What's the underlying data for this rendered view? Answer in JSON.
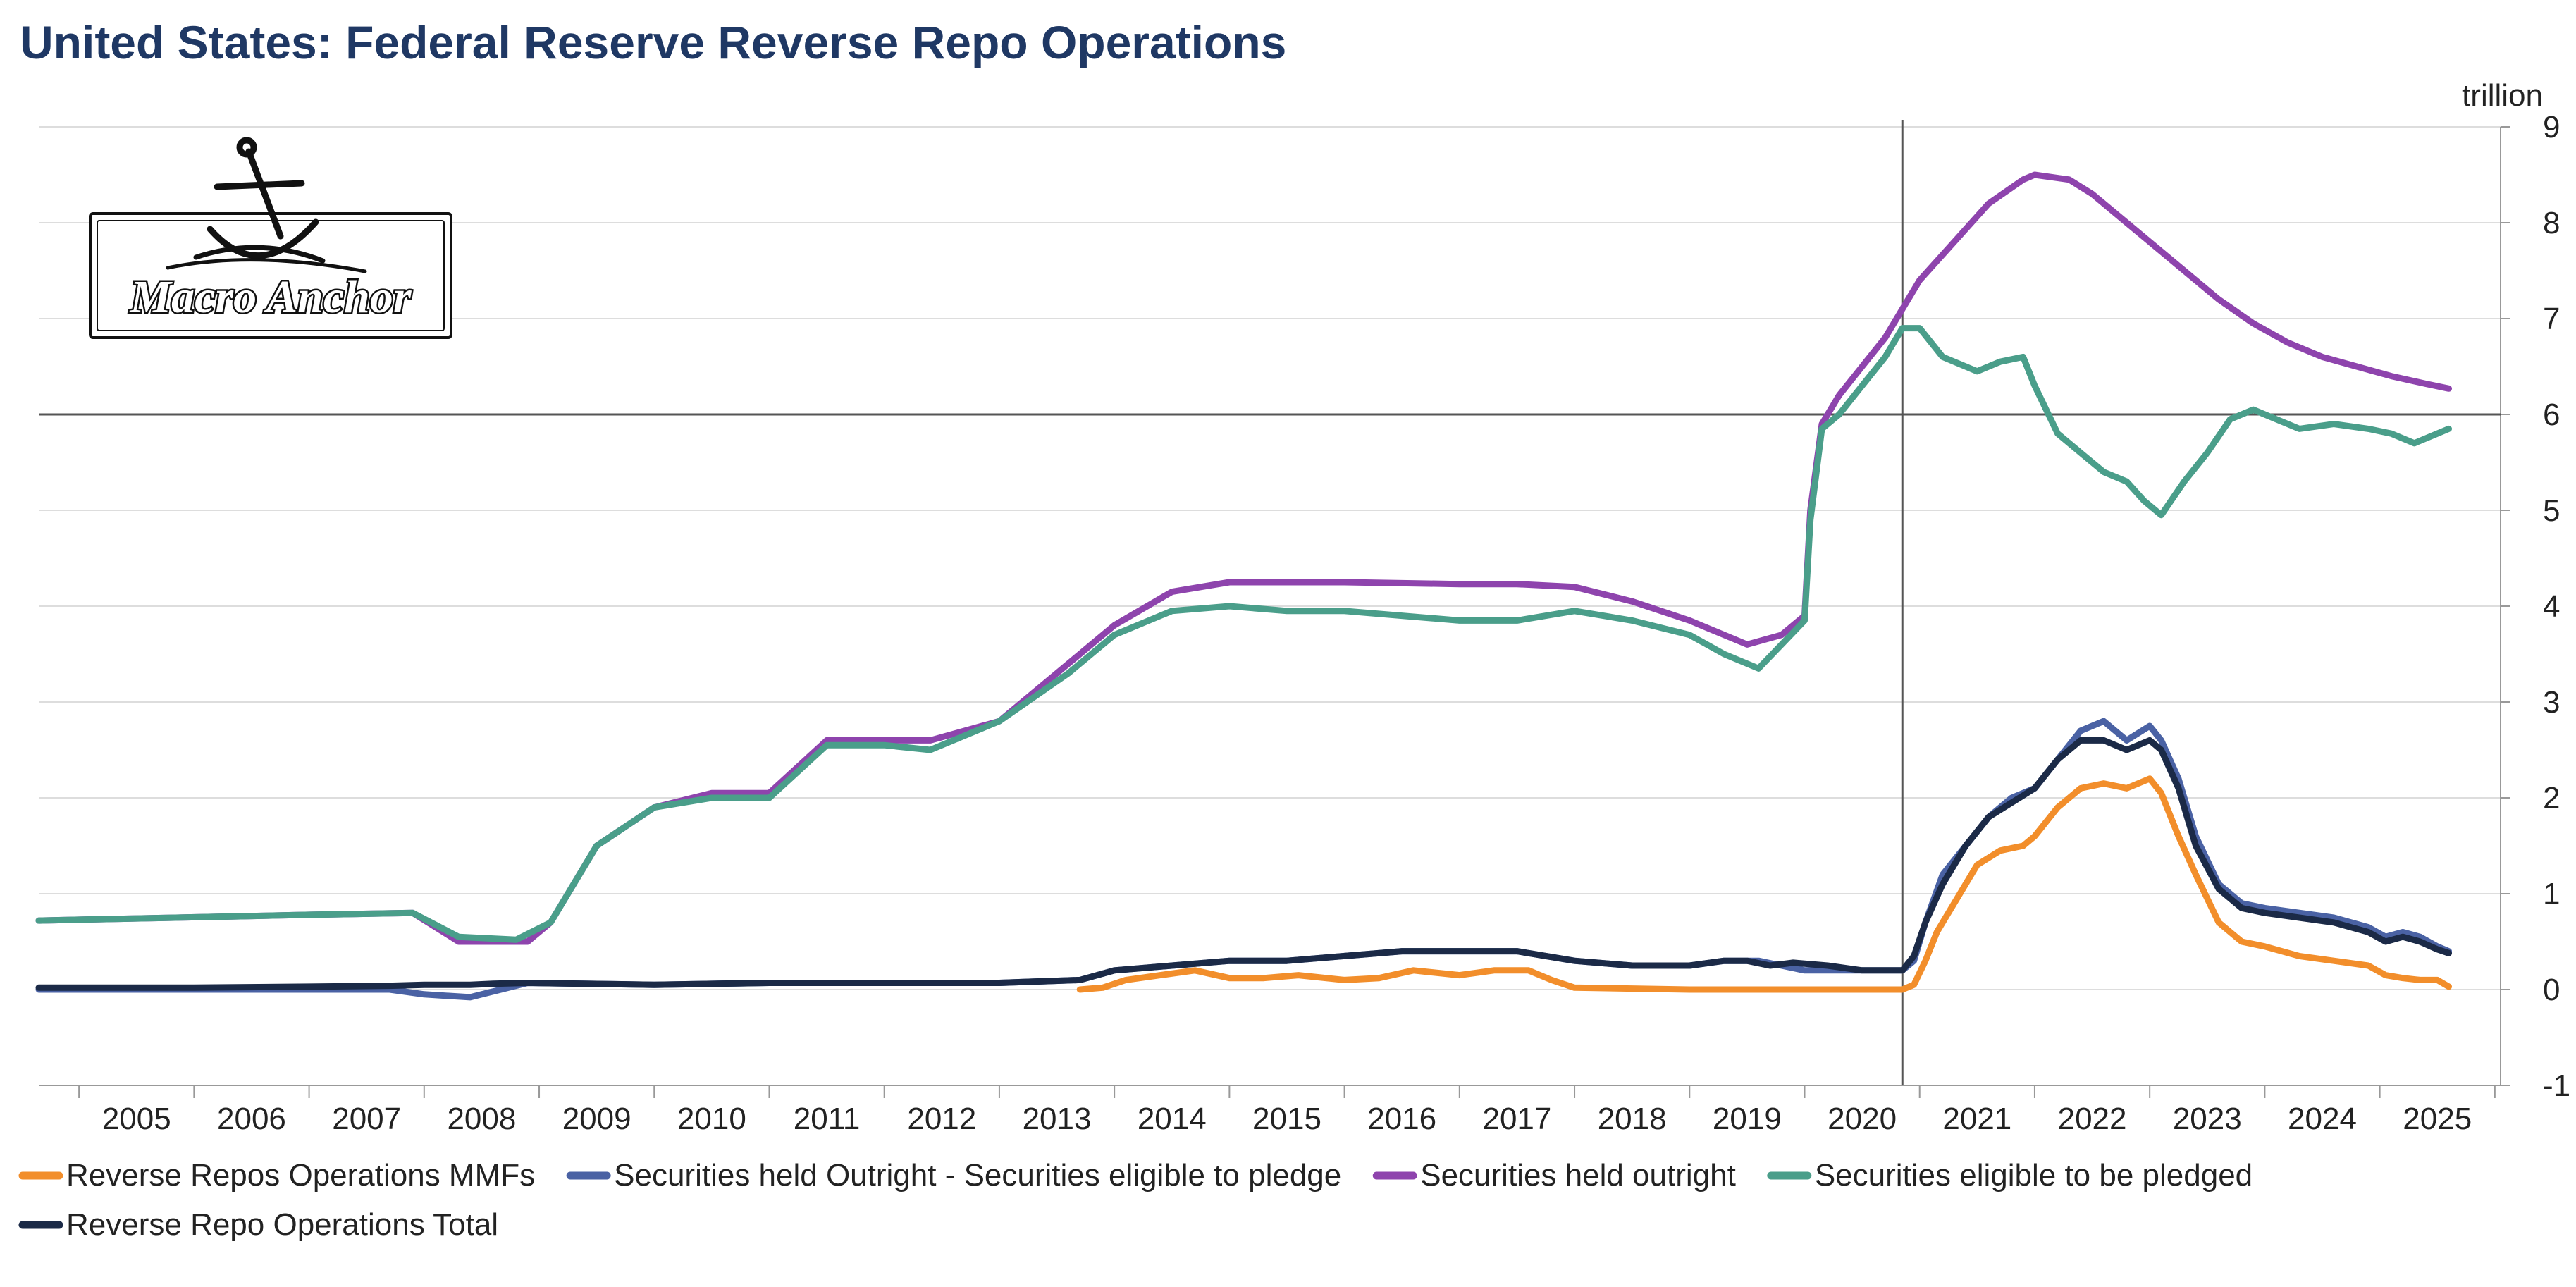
{
  "title": "United States: Federal Reserve Reverse Repo Operations",
  "logo_text": "Macro Anchor",
  "chart_data": {
    "type": "line",
    "title": "United States: Federal Reserve Reverse Repo Operations",
    "y_unit": "trillion",
    "ylim": [
      -1,
      9
    ],
    "y_ticks": [
      -1,
      0,
      1,
      2,
      3,
      4,
      5,
      6,
      7,
      8,
      9
    ],
    "xlim": [
      2004.65,
      2026.05
    ],
    "x_ticks": [
      "2005",
      "2006",
      "2007",
      "2008",
      "2009",
      "2010",
      "2011",
      "2012",
      "2013",
      "2014",
      "2015",
      "2016",
      "2017",
      "2018",
      "2019",
      "2020",
      "2021",
      "2022",
      "2023",
      "2024",
      "2025"
    ],
    "grid": true,
    "reference_lines": {
      "horizontal_y": 6,
      "vertical_x": 2020.85
    },
    "legend_position": "bottom",
    "series": [
      {
        "name": "Reverse Repos Operations MMFs",
        "color": "#f28e2b",
        "x": [
          2013.7,
          2013.9,
          2014.1,
          2014.4,
          2014.7,
          2015.0,
          2015.3,
          2015.6,
          2016.0,
          2016.3,
          2016.6,
          2017.0,
          2017.3,
          2017.6,
          2017.8,
          2018.0,
          2018.5,
          2019.0,
          2019.5,
          2020.0,
          2020.85,
          2020.95,
          2021.05,
          2021.15,
          2021.3,
          2021.5,
          2021.7,
          2021.9,
          2022.0,
          2022.2,
          2022.4,
          2022.6,
          2022.8,
          2023.0,
          2023.1,
          2023.25,
          2023.4,
          2023.6,
          2023.8,
          2024.0,
          2024.3,
          2024.6,
          2024.9,
          2025.05,
          2025.2,
          2025.35,
          2025.5,
          2025.6
        ],
        "y": [
          0.0,
          0.02,
          0.1,
          0.15,
          0.2,
          0.12,
          0.12,
          0.15,
          0.1,
          0.12,
          0.2,
          0.15,
          0.2,
          0.2,
          0.1,
          0.02,
          0.01,
          0.0,
          0.0,
          0.0,
          0.0,
          0.05,
          0.3,
          0.6,
          0.9,
          1.3,
          1.45,
          1.5,
          1.6,
          1.9,
          2.1,
          2.15,
          2.1,
          2.2,
          2.05,
          1.6,
          1.2,
          0.7,
          0.5,
          0.45,
          0.35,
          0.3,
          0.25,
          0.15,
          0.12,
          0.1,
          0.1,
          0.03
        ]
      },
      {
        "name": "Securities held Outright - Securities eligible to pledge",
        "color": "#4a62a4",
        "x": [
          2004.65,
          2006.0,
          2007.0,
          2007.7,
          2008.0,
          2008.4,
          2008.9,
          2010.0,
          2011.0,
          2012.0,
          2013.0,
          2013.7,
          2014.0,
          2014.5,
          2015.0,
          2015.5,
          2016.0,
          2016.5,
          2017.0,
          2017.5,
          2018.0,
          2018.5,
          2019.0,
          2019.3,
          2019.6,
          2019.8,
          2020.0,
          2020.3,
          2020.6,
          2020.85,
          2020.95,
          2021.05,
          2021.2,
          2021.4,
          2021.6,
          2021.8,
          2022.0,
          2022.2,
          2022.4,
          2022.6,
          2022.8,
          2023.0,
          2023.1,
          2023.25,
          2023.4,
          2023.6,
          2023.8,
          2024.0,
          2024.3,
          2024.6,
          2024.9,
          2025.05,
          2025.2,
          2025.35,
          2025.5,
          2025.6
        ],
        "y": [
          0.0,
          0.0,
          0.0,
          0.0,
          -0.05,
          -0.08,
          0.07,
          0.05,
          0.07,
          0.07,
          0.07,
          0.1,
          0.2,
          0.25,
          0.3,
          0.3,
          0.35,
          0.4,
          0.4,
          0.4,
          0.3,
          0.25,
          0.25,
          0.3,
          0.3,
          0.25,
          0.2,
          0.2,
          0.2,
          0.2,
          0.3,
          0.7,
          1.2,
          1.5,
          1.8,
          2.0,
          2.1,
          2.4,
          2.7,
          2.8,
          2.6,
          2.75,
          2.6,
          2.2,
          1.6,
          1.1,
          0.9,
          0.85,
          0.8,
          0.75,
          0.65,
          0.55,
          0.6,
          0.55,
          0.45,
          0.4
        ]
      },
      {
        "name": "Securities held outright",
        "color": "#8e44ad",
        "x": [
          2004.65,
          2007.0,
          2007.9,
          2008.3,
          2008.9,
          2009.1,
          2009.5,
          2010.0,
          2010.5,
          2011.0,
          2011.5,
          2012.0,
          2012.4,
          2013.0,
          2013.6,
          2014.0,
          2014.5,
          2015.0,
          2016.0,
          2017.0,
          2017.5,
          2018.0,
          2018.5,
          2019.0,
          2019.5,
          2019.8,
          2020.0,
          2020.05,
          2020.15,
          2020.3,
          2020.5,
          2020.7,
          2020.85,
          2021.0,
          2021.3,
          2021.6,
          2021.9,
          2022.0,
          2022.3,
          2022.5,
          2022.8,
          2023.0,
          2023.3,
          2023.6,
          2023.9,
          2024.2,
          2024.5,
          2024.8,
          2025.1,
          2025.4,
          2025.6
        ],
        "y": [
          0.72,
          0.78,
          0.8,
          0.5,
          0.5,
          0.7,
          1.5,
          1.9,
          2.05,
          2.05,
          2.6,
          2.6,
          2.6,
          2.8,
          3.4,
          3.8,
          4.15,
          4.25,
          4.25,
          4.23,
          4.23,
          4.2,
          4.05,
          3.85,
          3.6,
          3.7,
          3.9,
          5.0,
          5.9,
          6.2,
          6.5,
          6.8,
          7.1,
          7.4,
          7.8,
          8.2,
          8.45,
          8.5,
          8.45,
          8.3,
          8.0,
          7.8,
          7.5,
          7.2,
          6.95,
          6.75,
          6.6,
          6.5,
          6.4,
          6.32,
          6.27
        ]
      },
      {
        "name": "Securities eligible to be pledged",
        "color": "#4a9e8a",
        "x": [
          2004.65,
          2007.0,
          2007.9,
          2008.3,
          2008.8,
          2009.1,
          2009.5,
          2010.0,
          2010.5,
          2011.0,
          2011.5,
          2012.0,
          2012.4,
          2013.0,
          2013.6,
          2014.0,
          2014.5,
          2015.0,
          2015.5,
          2016.0,
          2016.5,
          2017.0,
          2017.5,
          2018.0,
          2018.5,
          2019.0,
          2019.3,
          2019.6,
          2020.0,
          2020.05,
          2020.15,
          2020.3,
          2020.5,
          2020.7,
          2020.85,
          2021.0,
          2021.2,
          2021.5,
          2021.7,
          2021.9,
          2022.0,
          2022.2,
          2022.4,
          2022.6,
          2022.8,
          2022.95,
          2023.1,
          2023.3,
          2023.5,
          2023.7,
          2023.9,
          2024.1,
          2024.3,
          2024.6,
          2024.9,
          2025.1,
          2025.3,
          2025.5,
          2025.6
        ],
        "y": [
          0.72,
          0.78,
          0.8,
          0.55,
          0.52,
          0.7,
          1.5,
          1.9,
          2.0,
          2.0,
          2.55,
          2.55,
          2.5,
          2.8,
          3.3,
          3.7,
          3.95,
          4.0,
          3.95,
          3.95,
          3.9,
          3.85,
          3.85,
          3.95,
          3.85,
          3.7,
          3.5,
          3.35,
          3.85,
          4.9,
          5.85,
          6.0,
          6.3,
          6.6,
          6.9,
          6.9,
          6.6,
          6.45,
          6.55,
          6.6,
          6.3,
          5.8,
          5.6,
          5.4,
          5.3,
          5.1,
          4.95,
          5.3,
          5.6,
          5.95,
          6.05,
          5.95,
          5.85,
          5.9,
          5.85,
          5.8,
          5.7,
          5.8,
          5.85
        ]
      },
      {
        "name": "Reverse Repo Operations Total",
        "color": "#1b2a47",
        "x": [
          2004.65,
          2006.0,
          2007.0,
          2007.7,
          2008.0,
          2008.4,
          2008.6,
          2008.9,
          2010.0,
          2011.0,
          2012.0,
          2013.0,
          2013.7,
          2014.0,
          2014.5,
          2015.0,
          2015.5,
          2016.0,
          2016.5,
          2017.0,
          2017.5,
          2018.0,
          2018.5,
          2019.0,
          2019.3,
          2019.5,
          2019.7,
          2019.9,
          2020.2,
          2020.5,
          2020.85,
          2020.95,
          2021.05,
          2021.2,
          2021.4,
          2021.6,
          2021.8,
          2022.0,
          2022.2,
          2022.4,
          2022.6,
          2022.8,
          2023.0,
          2023.1,
          2023.25,
          2023.4,
          2023.6,
          2023.8,
          2024.0,
          2024.3,
          2024.6,
          2024.9,
          2025.05,
          2025.2,
          2025.35,
          2025.5,
          2025.6
        ],
        "y": [
          0.02,
          0.02,
          0.03,
          0.04,
          0.05,
          0.05,
          0.06,
          0.07,
          0.05,
          0.07,
          0.07,
          0.07,
          0.1,
          0.2,
          0.25,
          0.3,
          0.3,
          0.35,
          0.4,
          0.4,
          0.4,
          0.3,
          0.25,
          0.25,
          0.3,
          0.3,
          0.25,
          0.28,
          0.25,
          0.2,
          0.2,
          0.35,
          0.7,
          1.1,
          1.5,
          1.8,
          1.95,
          2.1,
          2.4,
          2.6,
          2.6,
          2.5,
          2.6,
          2.5,
          2.1,
          1.5,
          1.05,
          0.85,
          0.8,
          0.75,
          0.7,
          0.6,
          0.5,
          0.55,
          0.5,
          0.42,
          0.38
        ]
      }
    ]
  }
}
